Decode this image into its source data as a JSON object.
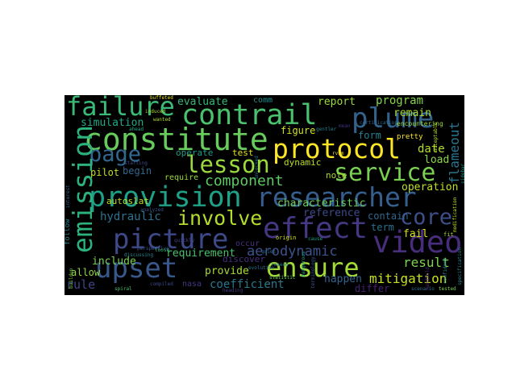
{
  "word_cloud": {
    "background": "#000000",
    "words": [
      {
        "text": "failure",
        "color": "#3aba76"
      },
      {
        "text": "contrail",
        "color": "#4ac16d"
      },
      {
        "text": "plume",
        "color": "#33638d"
      },
      {
        "text": "constitute",
        "color": "#67cc5c"
      },
      {
        "text": "protocol",
        "color": "#fde725"
      },
      {
        "text": "page",
        "color": "#31688e"
      },
      {
        "text": "lesson",
        "color": "#9bd93c"
      },
      {
        "text": "service",
        "color": "#7ad151"
      },
      {
        "text": "emission",
        "color": "#2db27d"
      },
      {
        "text": "provision",
        "color": "#1fa188"
      },
      {
        "text": "researcher",
        "color": "#355f8d"
      },
      {
        "text": "involve",
        "color": "#b2dd2d"
      },
      {
        "text": "core",
        "color": "#3d4e8a"
      },
      {
        "text": "effect",
        "color": "#453781"
      },
      {
        "text": "picture",
        "color": "#3e4989"
      },
      {
        "text": "video",
        "color": "#472d7b"
      },
      {
        "text": "upset",
        "color": "#38588c"
      },
      {
        "text": "ensure",
        "color": "#a2da37"
      },
      {
        "text": "component",
        "color": "#5ec962"
      },
      {
        "text": "aerodynamic",
        "color": "#3b528b"
      },
      {
        "text": "mitigation",
        "color": "#c8e020"
      },
      {
        "text": "result",
        "color": "#7fd34e"
      },
      {
        "text": "coefficient",
        "color": "#2a788e"
      },
      {
        "text": "simulation",
        "color": "#22a884"
      },
      {
        "text": "evaluate",
        "color": "#35b779"
      },
      {
        "text": "report",
        "color": "#9bd93c"
      },
      {
        "text": "program",
        "color": "#84d44b"
      },
      {
        "text": "flameout",
        "color": "#2a768e"
      },
      {
        "text": "remain",
        "color": "#a5db36"
      },
      {
        "text": "form",
        "color": "#277f8e"
      },
      {
        "text": "date",
        "color": "#b5de2b"
      },
      {
        "text": "load",
        "color": "#8bd646"
      },
      {
        "text": "operation",
        "color": "#c0df25"
      },
      {
        "text": "characteristic",
        "color": "#6ccd5a"
      },
      {
        "text": "reference",
        "color": "#3e4a89"
      },
      {
        "text": "contain",
        "color": "#31678e"
      },
      {
        "text": "term",
        "color": "#2c718e"
      },
      {
        "text": "fail",
        "color": "#d8e219"
      },
      {
        "text": "differ",
        "color": "#482173"
      },
      {
        "text": "happen",
        "color": "#33638d"
      },
      {
        "text": "hydraulic",
        "color": "#2c728e"
      },
      {
        "text": "autoslat",
        "color": "#bddf26"
      },
      {
        "text": "pilot",
        "color": "#c2df23"
      },
      {
        "text": "begin",
        "color": "#31678e"
      },
      {
        "text": "requirement",
        "color": "#4ac16d"
      },
      {
        "text": "include",
        "color": "#7ad151"
      },
      {
        "text": "allow",
        "color": "#95d840"
      },
      {
        "text": "provide",
        "color": "#a8db34"
      },
      {
        "text": "rule",
        "color": "#414487"
      },
      {
        "text": "operate",
        "color": "#1f9e89"
      },
      {
        "text": "require",
        "color": "#9dd93b"
      },
      {
        "text": "test",
        "color": "#e5e419"
      },
      {
        "text": "figure",
        "color": "#d0e11c"
      },
      {
        "text": "dynamic",
        "color": "#bade28"
      },
      {
        "text": "note",
        "color": "#addc30"
      },
      {
        "text": "comm",
        "color": "#228c8d"
      },
      {
        "text": "occur",
        "color": "#46307e"
      },
      {
        "text": "discover",
        "color": "#472f7d"
      },
      {
        "text": "nasa",
        "color": "#463480"
      },
      {
        "text": "follow",
        "color": "#26828e"
      },
      {
        "text": "buffeted",
        "color": "#e2e418"
      },
      {
        "text": "encountering",
        "color": "#9bd93c"
      },
      {
        "text": "certification",
        "color": "#31688e"
      },
      {
        "text": "pretty",
        "color": "#fde725"
      },
      {
        "text": "origin",
        "color": "#d2e21b"
      },
      {
        "text": "perspective",
        "color": "#3b528b"
      },
      {
        "text": "discussing",
        "color": "#25848e"
      },
      {
        "text": "loose",
        "color": "#35b779"
      },
      {
        "text": "compiled",
        "color": "#3e4a89"
      },
      {
        "text": "tested",
        "color": "#7ad151"
      },
      {
        "text": "wanted",
        "color": "#b5de2b"
      },
      {
        "text": "spiral",
        "color": "#4ac16d"
      },
      {
        "text": "quiet",
        "color": "#31688e"
      },
      {
        "text": "gentler",
        "color": "#26828e"
      },
      {
        "text": "mean",
        "color": "#46327e"
      },
      {
        "text": "ahead",
        "color": "#22a884"
      },
      {
        "text": "reseed",
        "color": "#2a788e"
      },
      {
        "text": "starting",
        "color": "#3e4a89"
      },
      {
        "text": "induced",
        "color": "#a8db34"
      },
      {
        "text": "evolution",
        "color": "#2c728e"
      },
      {
        "text": "modification",
        "color": "#c8e020"
      },
      {
        "text": "specification",
        "color": "#25838e"
      },
      {
        "text": "handheld",
        "color": "#482878"
      },
      {
        "text": "sidebar",
        "color": "#1f9e89"
      },
      {
        "text": "unlocked",
        "color": "#2a788e"
      },
      {
        "text": "statistic",
        "color": "#6ccd5a"
      },
      {
        "text": "quickly",
        "color": "#414487"
      },
      {
        "text": "cause",
        "color": "#1f9e89"
      },
      {
        "text": "acceptable",
        "color": "#b5de2b"
      },
      {
        "text": "scenario",
        "color": "#2c728e"
      },
      {
        "text": "analyzed",
        "color": "#3b528b"
      },
      {
        "text": "confident",
        "color": "#26828e"
      },
      {
        "text": "terminology",
        "color": "#38588c"
      },
      {
        "text": "buildup",
        "color": "#7ad151"
      },
      {
        "text": "dangerous",
        "color": "#1f9e89"
      },
      {
        "text": "interest",
        "color": "#31688e"
      },
      {
        "text": "rvsm",
        "color": "#fde725"
      },
      {
        "text": "heading",
        "color": "#433e85"
      },
      {
        "text": "fit",
        "color": "#a8db34"
      }
    ]
  }
}
